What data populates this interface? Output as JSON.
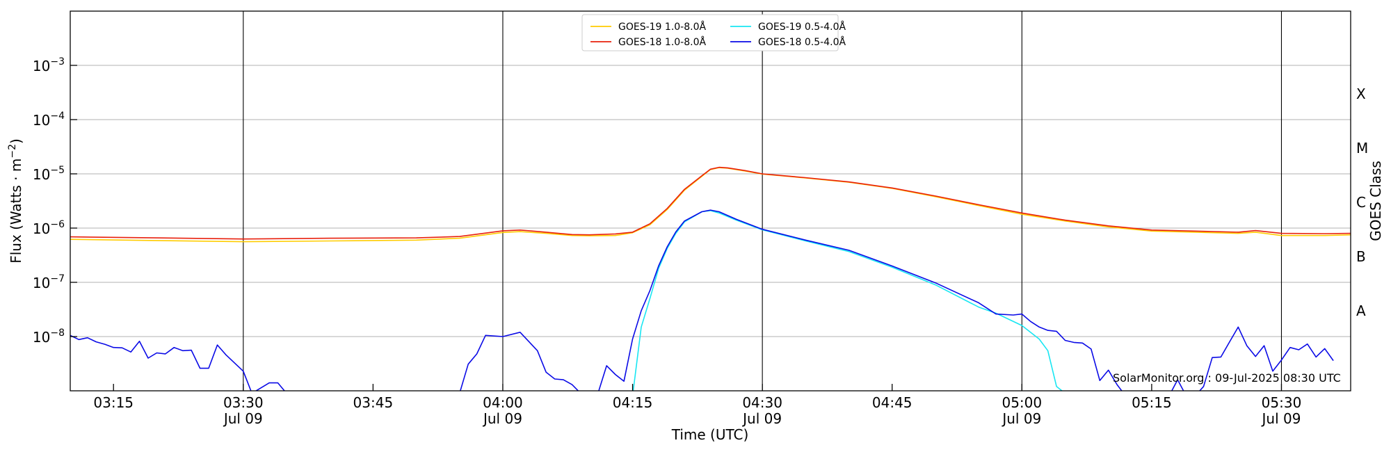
{
  "chart_data": {
    "type": "line",
    "title": "",
    "xlabel": "Time (UTC)",
    "ylabel_main": "Flux (Watts · m",
    "ylabel_sup": "−2",
    "ylabel_close": ")",
    "ylabel_right": "GOES Class",
    "yscale": "log",
    "ylim": [
      1e-09,
      0.01
    ],
    "xlim": [
      "03:10",
      "05:38"
    ],
    "grid": "horizontal",
    "legend_position": "top-center",
    "y_ticks": [
      {
        "value": 1e-08,
        "base": "10",
        "exp": "−8"
      },
      {
        "value": 1e-07,
        "base": "10",
        "exp": "−7"
      },
      {
        "value": 1e-06,
        "base": "10",
        "exp": "−6"
      },
      {
        "value": 1e-05,
        "base": "10",
        "exp": "−5"
      },
      {
        "value": 0.0001,
        "base": "10",
        "exp": "−4"
      },
      {
        "value": 0.001,
        "base": "10",
        "exp": "−3"
      }
    ],
    "x_ticks": [
      {
        "time": "03:15",
        "label": "03:15",
        "date": ""
      },
      {
        "time": "03:30",
        "label": "03:30",
        "date": "Jul 09"
      },
      {
        "time": "03:45",
        "label": "03:45",
        "date": ""
      },
      {
        "time": "04:00",
        "label": "04:00",
        "date": "Jul 09"
      },
      {
        "time": "04:15",
        "label": "04:15",
        "date": ""
      },
      {
        "time": "04:30",
        "label": "04:30",
        "date": "Jul 09"
      },
      {
        "time": "04:45",
        "label": "04:45",
        "date": ""
      },
      {
        "time": "05:00",
        "label": "05:00",
        "date": "Jul 09"
      },
      {
        "time": "05:15",
        "label": "05:15",
        "date": ""
      },
      {
        "time": "05:30",
        "label": "05:30",
        "date": "Jul 09"
      }
    ],
    "vertical_lines": [
      "03:30",
      "04:00",
      "04:30",
      "05:00",
      "05:30"
    ],
    "goes_classes": [
      {
        "label": "A",
        "flux": 3e-08
      },
      {
        "label": "B",
        "flux": 3e-07
      },
      {
        "label": "C",
        "flux": 3e-06
      },
      {
        "label": "M",
        "flux": 3e-05
      },
      {
        "label": "X",
        "flux": 0.0003
      }
    ],
    "annotation": "SolarMonitor.org : 09-Jul-2025 08:30 UTC",
    "series": [
      {
        "name": "GOES-19 1.0-8.0Å",
        "color": "#ffcc00",
        "points": [
          [
            "03:10",
            6.2e-07
          ],
          [
            "03:20",
            5.9e-07
          ],
          [
            "03:30",
            5.6e-07
          ],
          [
            "03:40",
            5.8e-07
          ],
          [
            "03:50",
            6e-07
          ],
          [
            "03:55",
            6.5e-07
          ],
          [
            "04:00",
            8.3e-07
          ],
          [
            "04:02",
            8.6e-07
          ],
          [
            "04:05",
            8e-07
          ],
          [
            "04:08",
            7.3e-07
          ],
          [
            "04:10",
            7.2e-07
          ],
          [
            "04:13",
            7.3e-07
          ],
          [
            "04:15",
            8.2e-07
          ],
          [
            "04:17",
            1.15e-06
          ],
          [
            "04:19",
            2.2e-06
          ],
          [
            "04:21",
            5e-06
          ],
          [
            "04:23",
            9e-06
          ],
          [
            "04:24",
            1.2e-05
          ],
          [
            "04:25",
            1.3e-05
          ],
          [
            "04:26",
            1.27e-05
          ],
          [
            "04:28",
            1.13e-05
          ],
          [
            "04:30",
            9.9e-06
          ],
          [
            "04:35",
            8.4e-06
          ],
          [
            "04:40",
            7e-06
          ],
          [
            "04:45",
            5.4e-06
          ],
          [
            "04:50",
            3.8e-06
          ],
          [
            "04:55",
            2.6e-06
          ],
          [
            "05:00",
            1.8e-06
          ],
          [
            "05:05",
            1.35e-06
          ],
          [
            "05:10",
            1.05e-06
          ],
          [
            "05:15",
            8.8e-07
          ],
          [
            "05:20",
            8.4e-07
          ],
          [
            "05:25",
            8e-07
          ],
          [
            "05:27",
            8.4e-07
          ],
          [
            "05:30",
            7.3e-07
          ],
          [
            "05:35",
            7.3e-07
          ],
          [
            "05:38",
            7.5e-07
          ]
        ]
      },
      {
        "name": "GOES-18 1.0-8.0Å",
        "color": "#e8200c",
        "points": [
          [
            "03:10",
            6.9e-07
          ],
          [
            "03:20",
            6.6e-07
          ],
          [
            "03:30",
            6.3e-07
          ],
          [
            "03:40",
            6.5e-07
          ],
          [
            "03:50",
            6.6e-07
          ],
          [
            "03:55",
            7e-07
          ],
          [
            "04:00",
            8.9e-07
          ],
          [
            "04:02",
            9.2e-07
          ],
          [
            "04:05",
            8.4e-07
          ],
          [
            "04:08",
            7.6e-07
          ],
          [
            "04:10",
            7.5e-07
          ],
          [
            "04:13",
            7.8e-07
          ],
          [
            "04:15",
            8.4e-07
          ],
          [
            "04:17",
            1.2e-06
          ],
          [
            "04:19",
            2.3e-06
          ],
          [
            "04:21",
            5.2e-06
          ],
          [
            "04:23",
            9.2e-06
          ],
          [
            "04:24",
            1.22e-05
          ],
          [
            "04:25",
            1.32e-05
          ],
          [
            "04:26",
            1.29e-05
          ],
          [
            "04:28",
            1.15e-05
          ],
          [
            "04:30",
            1e-05
          ],
          [
            "04:35",
            8.5e-06
          ],
          [
            "04:40",
            7.1e-06
          ],
          [
            "04:45",
            5.5e-06
          ],
          [
            "04:50",
            3.9e-06
          ],
          [
            "04:55",
            2.7e-06
          ],
          [
            "05:00",
            1.9e-06
          ],
          [
            "05:05",
            1.4e-06
          ],
          [
            "05:10",
            1.1e-06
          ],
          [
            "05:15",
            9.2e-07
          ],
          [
            "05:20",
            8.8e-07
          ],
          [
            "05:25",
            8.4e-07
          ],
          [
            "05:27",
            9e-07
          ],
          [
            "05:30",
            8e-07
          ],
          [
            "05:35",
            7.9e-07
          ],
          [
            "05:38",
            8e-07
          ]
        ]
      },
      {
        "name": "GOES-19 0.5-4.0Å",
        "color": "#18e6f2",
        "points": [
          [
            "04:15",
            8e-10
          ],
          [
            "04:16",
            1.5e-08
          ],
          [
            "04:17",
            5e-08
          ],
          [
            "04:18",
            1.8e-07
          ],
          [
            "04:19",
            4.2e-07
          ],
          [
            "04:20",
            8e-07
          ],
          [
            "04:21",
            1.3e-06
          ],
          [
            "04:23",
            2e-06
          ],
          [
            "04:24",
            2.1e-06
          ],
          [
            "04:25",
            1.9e-06
          ],
          [
            "04:27",
            1.4e-06
          ],
          [
            "04:30",
            9.3e-07
          ],
          [
            "04:35",
            5.8e-07
          ],
          [
            "04:40",
            3.7e-07
          ],
          [
            "04:45",
            1.9e-07
          ],
          [
            "04:50",
            9e-08
          ],
          [
            "04:55",
            3.5e-08
          ],
          [
            "04:57",
            2.7e-08
          ],
          [
            "05:00",
            1.6e-08
          ],
          [
            "05:02",
            9e-09
          ],
          [
            "05:03",
            5.5e-09
          ],
          [
            "05:04",
            1.2e-09
          ],
          [
            "05:05",
            9e-10
          ]
        ]
      },
      {
        "name": "GOES-18 0.5-4.0Å",
        "color": "#0a0ae6",
        "points": [
          [
            "03:10",
            1.05e-08
          ],
          [
            "03:11",
            8.8e-09
          ],
          [
            "03:12",
            9.5e-09
          ],
          [
            "03:13",
            8e-09
          ],
          [
            "03:14",
            7.2e-09
          ],
          [
            "03:15",
            6.3e-09
          ],
          [
            "03:16",
            6.2e-09
          ],
          [
            "03:17",
            5.2e-09
          ],
          [
            "03:18",
            8.2e-09
          ],
          [
            "03:19",
            4e-09
          ],
          [
            "03:20",
            5e-09
          ],
          [
            "03:21",
            4.8e-09
          ],
          [
            "03:22",
            6.3e-09
          ],
          [
            "03:23",
            5.5e-09
          ],
          [
            "03:24",
            5.6e-09
          ],
          [
            "03:25",
            2.6e-09
          ],
          [
            "03:26",
            2.6e-09
          ],
          [
            "03:27",
            7e-09
          ],
          [
            "03:28",
            4.6e-09
          ],
          [
            "03:30",
            2.3e-09
          ],
          [
            "03:31",
            9e-10
          ],
          [
            "03:33",
            1.4e-09
          ],
          [
            "03:34",
            1.4e-09
          ],
          [
            "03:35",
            9e-10
          ],
          [
            "03:55",
            9e-10
          ],
          [
            "03:56",
            3.1e-09
          ],
          [
            "03:57",
            4.8e-09
          ],
          [
            "03:58",
            1.05e-08
          ],
          [
            "04:00",
            1e-08
          ],
          [
            "04:02",
            1.2e-08
          ],
          [
            "04:04",
            5.5e-09
          ],
          [
            "04:05",
            2.2e-09
          ],
          [
            "04:06",
            1.65e-09
          ],
          [
            "04:07",
            1.6e-09
          ],
          [
            "04:08",
            1.3e-09
          ],
          [
            "04:09",
            9e-10
          ],
          [
            "04:11",
            9e-10
          ],
          [
            "04:12",
            2.9e-09
          ],
          [
            "04:13",
            2e-09
          ],
          [
            "04:14",
            1.5e-09
          ],
          [
            "04:15",
            9e-09
          ],
          [
            "04:16",
            3e-08
          ],
          [
            "04:17",
            7e-08
          ],
          [
            "04:18",
            2e-07
          ],
          [
            "04:19",
            4.5e-07
          ],
          [
            "04:20",
            8.5e-07
          ],
          [
            "04:21",
            1.35e-06
          ],
          [
            "04:23",
            2e-06
          ],
          [
            "04:24",
            2.15e-06
          ],
          [
            "04:25",
            2e-06
          ],
          [
            "04:27",
            1.45e-06
          ],
          [
            "04:30",
            9.5e-07
          ],
          [
            "04:35",
            6e-07
          ],
          [
            "04:40",
            3.9e-07
          ],
          [
            "04:45",
            2e-07
          ],
          [
            "04:50",
            9.8e-08
          ],
          [
            "04:55",
            4.2e-08
          ],
          [
            "04:57",
            2.6e-08
          ],
          [
            "04:59",
            2.5e-08
          ],
          [
            "05:00",
            2.6e-08
          ],
          [
            "05:01",
            1.9e-08
          ],
          [
            "05:02",
            1.5e-08
          ],
          [
            "05:03",
            1.3e-08
          ],
          [
            "05:04",
            1.25e-08
          ],
          [
            "05:05",
            8.5e-09
          ],
          [
            "05:06",
            7.8e-09
          ],
          [
            "05:07",
            7.6e-09
          ],
          [
            "05:08",
            5.9e-09
          ],
          [
            "05:09",
            1.55e-09
          ],
          [
            "05:10",
            2.4e-09
          ],
          [
            "05:11",
            1.3e-09
          ],
          [
            "05:12",
            8e-10
          ],
          [
            "05:17",
            8e-10
          ],
          [
            "05:18",
            1.6e-09
          ],
          [
            "05:19",
            8e-10
          ],
          [
            "05:20",
            8e-10
          ],
          [
            "05:21",
            1.2e-09
          ],
          [
            "05:22",
            4.1e-09
          ],
          [
            "05:23",
            4.2e-09
          ],
          [
            "05:24",
            8e-09
          ],
          [
            "05:25",
            1.5e-08
          ],
          [
            "05:26",
            6.8e-09
          ],
          [
            "05:27",
            4.3e-09
          ],
          [
            "05:28",
            6.8e-09
          ],
          [
            "05:29",
            2.3e-09
          ],
          [
            "05:30",
            3.7e-09
          ],
          [
            "05:31",
            6.3e-09
          ],
          [
            "05:32",
            5.7e-09
          ],
          [
            "05:33",
            7.3e-09
          ],
          [
            "05:34",
            4.2e-09
          ],
          [
            "05:35",
            6e-09
          ],
          [
            "05:36",
            3.6e-09
          ]
        ]
      }
    ]
  }
}
